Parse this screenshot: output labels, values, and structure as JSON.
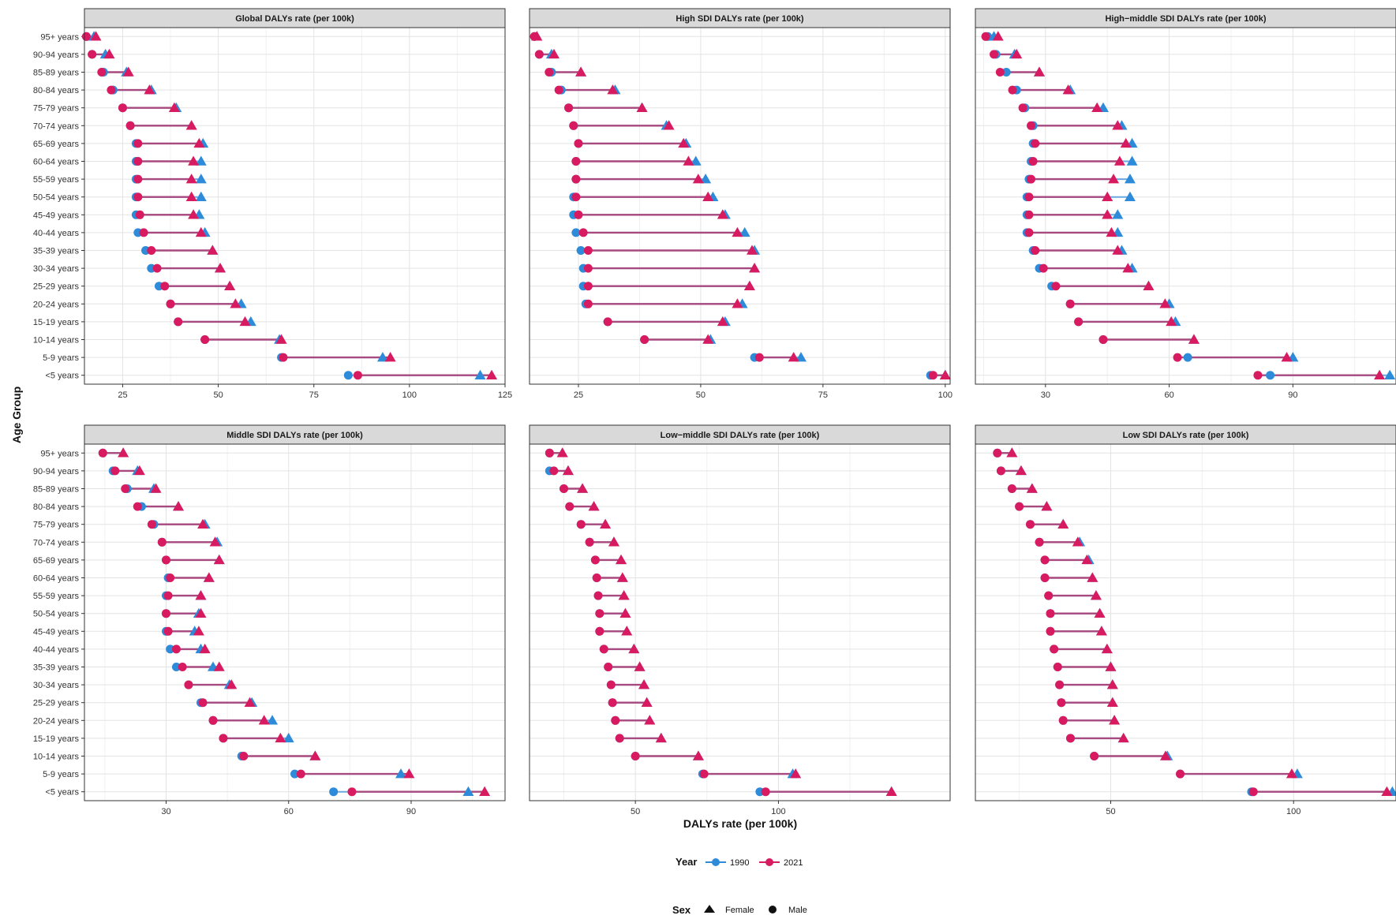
{
  "chart_data": {
    "type": "dumbbell",
    "xlabel": "DALYs rate (per 100k)",
    "ylabel": "Age Group",
    "age_groups": [
      "95+ years",
      "90-94 years",
      "85-89 years",
      "80-84 years",
      "75-79 years",
      "70-74 years",
      "65-69 years",
      "60-64 years",
      "55-59 years",
      "50-54 years",
      "45-49 years",
      "40-44 years",
      "35-39 years",
      "30-34 years",
      "25-29 years",
      "20-24 years",
      "15-19 years",
      "10-14 years",
      "5-9 years",
      "<5 years"
    ],
    "colors": {
      "1990": "#2e8bd9",
      "2021": "#d81b60",
      "segment": "#a8497f"
    },
    "legend": {
      "year_title": "Year",
      "year_items": [
        {
          "label": "1990",
          "color": "#2e8bd9"
        },
        {
          "label": "2021",
          "color": "#d81b60"
        }
      ],
      "sex_title": "Sex",
      "sex_items": [
        {
          "label": "Female",
          "shape": "triangle"
        },
        {
          "label": "Male",
          "shape": "circle"
        }
      ]
    },
    "panels": [
      {
        "title": "Global DALYs rate (per 100k)",
        "xlim": [
          15,
          125
        ],
        "xticks": [
          25,
          50,
          75,
          100,
          125
        ],
        "male_1990": [
          15.5,
          17,
          20,
          22.5,
          25,
          27,
          28.5,
          28.5,
          28.5,
          28.5,
          28.5,
          29,
          31,
          32.5,
          34.5,
          37.5,
          39.5,
          46.5,
          66.5,
          84
        ],
        "male_2021": [
          15.5,
          17,
          19.5,
          22,
          25,
          27,
          29,
          29,
          29,
          29,
          29.5,
          30.5,
          32.5,
          34,
          36,
          37.5,
          39.5,
          46.5,
          67,
          86.5
        ],
        "female_1990": [
          17.5,
          20.5,
          26,
          32.5,
          39,
          43,
          46,
          45.5,
          45.5,
          45.5,
          45,
          46.5,
          48.5,
          50.5,
          53,
          56,
          58.5,
          66,
          93,
          118.5
        ],
        "female_2021": [
          18,
          21.5,
          26.5,
          32,
          38.5,
          43,
          45,
          43.5,
          43,
          43,
          43.5,
          45.5,
          48.5,
          50.5,
          53,
          54.5,
          57,
          66.5,
          95,
          121.5
        ]
      },
      {
        "title": "High SDI DALYs rate (per 100k)",
        "xlim": [
          15,
          101
        ],
        "xticks": [
          25,
          50,
          75,
          100
        ],
        "male_1990": [
          16,
          17,
          19.5,
          21.5,
          23,
          24,
          25,
          24.5,
          24.5,
          24,
          24,
          24.5,
          25.5,
          26,
          26,
          26.5,
          31,
          38.5,
          61,
          97
        ],
        "male_2021": [
          16,
          17,
          19,
          21,
          23,
          24,
          25,
          24.5,
          24.5,
          24.5,
          25,
          26,
          27,
          27,
          27,
          27,
          31,
          38.5,
          62,
          97.5
        ],
        "female_1990": [
          16.5,
          19.5,
          25.5,
          32.5,
          38,
          43,
          47,
          49,
          51,
          52.5,
          55,
          59,
          61,
          61,
          60,
          58.5,
          55,
          52,
          70.5,
          100
        ],
        "female_2021": [
          16.5,
          20,
          25.5,
          32,
          38,
          43.5,
          46.5,
          47.5,
          49.5,
          51.5,
          54.5,
          57.5,
          60.5,
          61,
          60,
          57.5,
          54.5,
          51.5,
          69,
          100
        ]
      },
      {
        "title": "High−middle SDI DALYs rate (per 100k)",
        "xlim": [
          13,
          115
        ],
        "xticks": [
          30,
          60,
          90
        ],
        "male_1990": [
          16,
          18,
          20.5,
          23,
          25,
          27,
          27,
          26.5,
          26,
          25.5,
          25.5,
          25.5,
          27,
          28.5,
          31.5,
          36,
          38,
          44,
          64.5,
          84.5
        ],
        "male_2021": [
          15.5,
          17.5,
          19,
          22,
          24.5,
          26.5,
          27.5,
          27,
          26.5,
          26,
          26,
          26,
          27.5,
          29.5,
          32.5,
          36,
          38,
          44,
          62,
          81.5
        ],
        "female_1990": [
          17.5,
          22.5,
          28.5,
          36,
          44,
          48.5,
          51,
          51,
          50.5,
          50.5,
          47.5,
          47.5,
          48.5,
          51,
          55,
          60,
          61.5,
          66,
          90,
          113.5
        ],
        "female_2021": [
          18.5,
          23,
          28.5,
          35.5,
          42.5,
          47.5,
          49.5,
          48,
          46.5,
          45,
          45,
          46,
          47.5,
          50,
          55,
          59,
          60.5,
          66,
          88.5,
          111
        ]
      },
      {
        "title": "Middle SDI DALYs rate (per 100k)",
        "xlim": [
          10,
          113
        ],
        "xticks": [
          30,
          60,
          90
        ],
        "male_1990": [
          14.5,
          17,
          20.5,
          24,
          27,
          29,
          30,
          30.5,
          30,
          30,
          30,
          31,
          32.5,
          35.5,
          38.5,
          41.5,
          44,
          48.5,
          61.5,
          71
        ],
        "male_2021": [
          14.5,
          17.5,
          20,
          23,
          26.5,
          29,
          30,
          31,
          30.5,
          30,
          30.5,
          32.5,
          34,
          35.5,
          39,
          41.5,
          44,
          49,
          63,
          75.5
        ],
        "female_1990": [
          19.5,
          23,
          27,
          33,
          39.5,
          42.5,
          43,
          40.5,
          38.5,
          38,
          37,
          38.5,
          41.5,
          45.5,
          51,
          56,
          60,
          66.5,
          87.5,
          104
        ],
        "female_2021": [
          19.5,
          23.5,
          27.5,
          33,
          39,
          42,
          43,
          40.5,
          38.5,
          38.5,
          38,
          39.5,
          43,
          46,
          50.5,
          54,
          58,
          66.5,
          89.5,
          108
        ]
      },
      {
        "title": "Low−middle SDI DALYs rate (per 100k)",
        "xlim": [
          13,
          160
        ],
        "xticks": [
          50,
          100
        ],
        "male_1990": [
          20,
          20,
          25,
          27,
          31,
          34,
          36,
          36.5,
          37,
          37.5,
          37.5,
          39,
          40.5,
          41.5,
          42,
          43,
          44.5,
          50,
          73.5,
          93.5
        ],
        "male_2021": [
          20,
          21.5,
          25,
          27,
          31,
          34,
          36,
          36.5,
          37,
          37.5,
          37.5,
          39,
          40.5,
          41.5,
          42,
          43,
          44.5,
          50,
          74,
          95.5
        ],
        "female_1990": [
          24.5,
          26.5,
          31.5,
          35.5,
          39.5,
          42.5,
          45,
          45.5,
          46,
          46.5,
          47,
          49.5,
          51.5,
          53,
          54,
          55,
          59,
          72,
          105,
          139.5
        ],
        "female_2021": [
          24.5,
          26.5,
          31.5,
          35.5,
          39.5,
          42.5,
          45,
          45.5,
          46,
          46.5,
          47,
          49.5,
          51.5,
          53,
          54,
          55,
          59,
          72,
          106,
          139.5
        ]
      },
      {
        "title": "Low SDI DALYs rate (per 100k)",
        "xlim": [
          13,
          128
        ],
        "xticks": [
          50,
          100
        ],
        "male_1990": [
          19,
          20,
          23,
          25,
          28,
          30.5,
          32,
          32,
          33,
          33.5,
          33.5,
          34.5,
          35.5,
          36,
          36.5,
          37,
          39,
          45.5,
          69,
          88.5
        ],
        "male_2021": [
          19,
          20,
          23,
          25,
          28,
          30.5,
          32,
          32,
          33,
          33.5,
          33.5,
          34.5,
          35.5,
          36,
          36.5,
          37,
          39,
          45.5,
          69,
          89
        ],
        "female_1990": [
          23,
          25.5,
          28.5,
          32.5,
          37,
          41.5,
          44,
          45,
          46,
          47,
          47.5,
          49,
          50,
          50.5,
          50.5,
          51,
          53.5,
          65.5,
          101,
          127
        ],
        "female_2021": [
          23,
          25.5,
          28.5,
          32.5,
          37,
          41,
          43.5,
          45,
          46,
          47,
          47.5,
          49,
          50,
          50.5,
          50.5,
          51,
          53.5,
          65,
          99.5,
          125.5
        ]
      }
    ]
  }
}
